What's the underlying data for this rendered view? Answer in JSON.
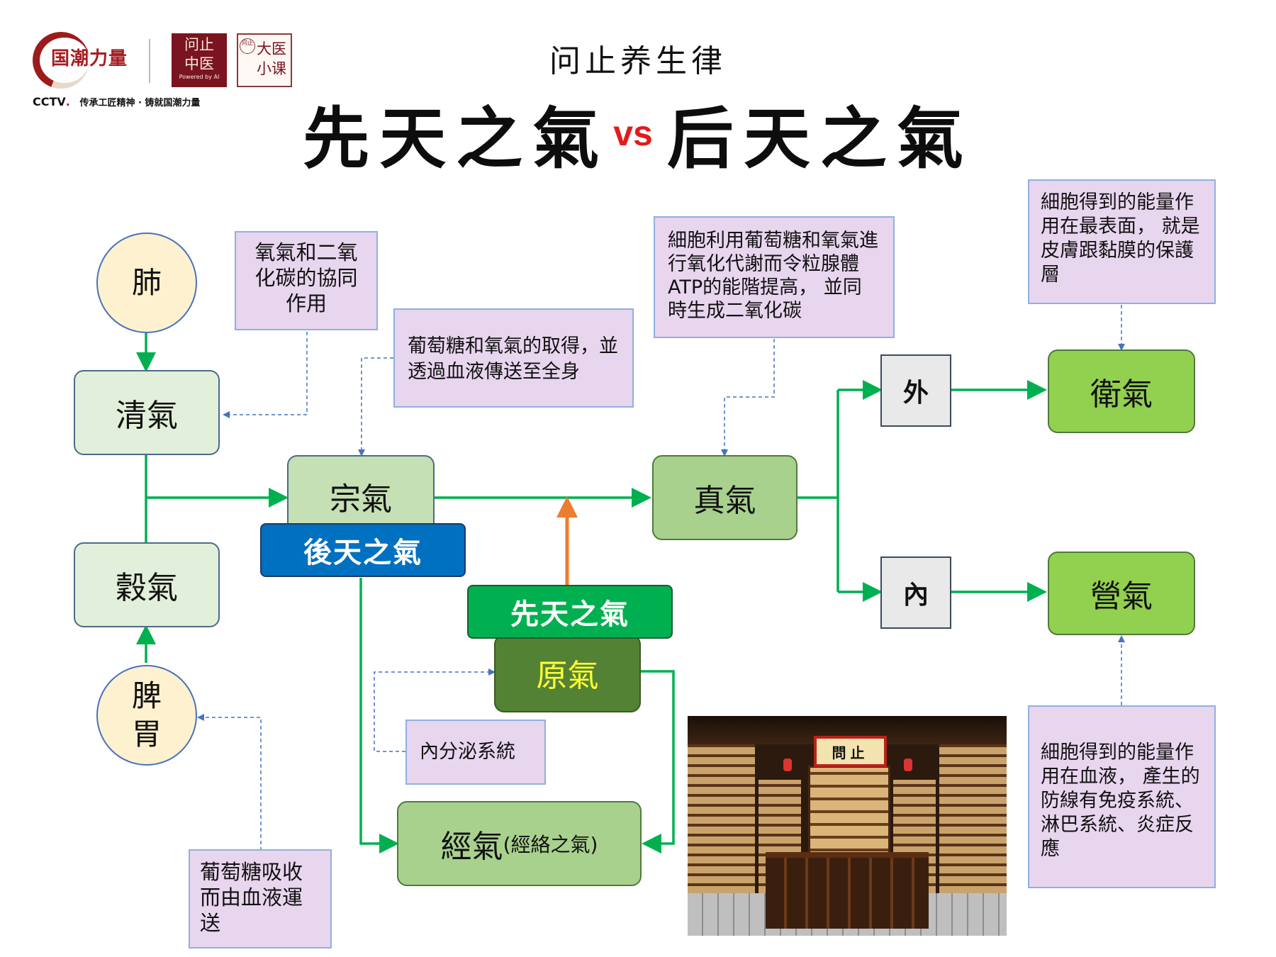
{
  "header": {
    "logo_text": "国潮力量",
    "seal1_lines": [
      "问止",
      "中医"
    ],
    "seal1_small": "Powered by AI",
    "seal2_lines": [
      "大医",
      "小课"
    ],
    "seal2_mark": "问止",
    "cctv_brand": "CCTV",
    "cctv_motto": "传承工匠精神 · 铸就国潮力量",
    "subtitle": "问止养生律",
    "title_left": "先天之氣",
    "title_vs": "vs",
    "title_right": "后天之氣"
  },
  "nodes": {
    "lung": "肺",
    "spleen": "脾\n胃",
    "qingqi": "清氣",
    "guqi": "穀氣",
    "zongqi": "宗氣",
    "houtian": "後天之氣",
    "xiantian": "先天之氣",
    "yuanqi": "原氣",
    "jingqi_main": "經氣",
    "jingqi_sub": "(經絡之氣)",
    "zhenqi": "真氣",
    "wai": "外",
    "nei": "內",
    "weiqi": "衛氣",
    "yingqi": "營氣"
  },
  "notes": {
    "oxygen": "氧氣和二氧化碳的協同作用",
    "glucose_transport": "葡萄糖和氧氣的取得，並透過血液傳送至全身",
    "cell_metabolism": "細胞利用葡萄糖和氧氣進行氧化代謝而令粒腺體ATP的能階提高， 並同時生成二氧化碳",
    "wei_note": "細胞得到的能量作用在最表面， 就是皮膚跟黏膜的保護層",
    "endocrine": "內分泌系統",
    "glucose_absorb": "葡萄糖吸收而由血液運送",
    "ying_note": "細胞得到的能量作用在血液， 產生的防線有免疫系統、淋巴系統、炎症反應"
  },
  "illustration": {
    "sign": "問止"
  },
  "colors": {
    "arrow_green": "#00b050",
    "arrow_orange": "#ed7d31",
    "dashed_blue": "#4472c4",
    "vs_red": "#e21b1b"
  }
}
